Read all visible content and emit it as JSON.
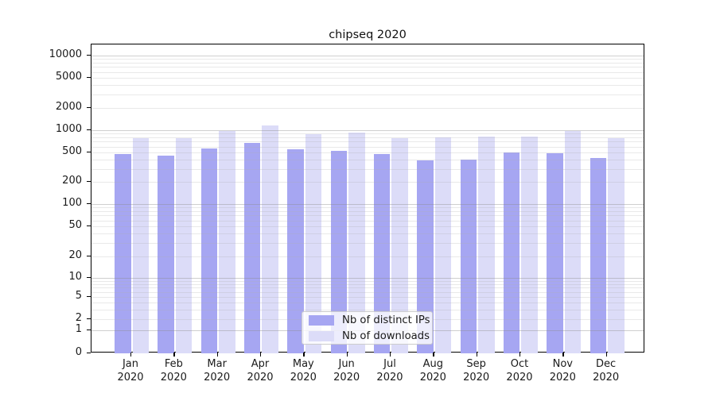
{
  "title": "chipseq 2020",
  "colors": {
    "bar_ips": "#a6a6f2",
    "bar_downloads": "#dcdcf8",
    "grid_major": "#d2d2d2",
    "grid_minor": "#e9e9e9",
    "spine": "#000000",
    "text": "#1a1a1a",
    "background": "#ffffff"
  },
  "legend": {
    "position": "lower center"
  },
  "chart_data": {
    "type": "bar",
    "title": "chipseq 2020",
    "categories": [
      "Jan 2020",
      "Feb 2020",
      "Mar 2020",
      "Apr 2020",
      "May 2020",
      "Jun 2020",
      "Jul 2020",
      "Aug 2020",
      "Sep 2020",
      "Oct 2020",
      "Nov 2020",
      "Dec 2020"
    ],
    "series": [
      {
        "name": "Nb of distinct IPs",
        "color": "#a6a6f2",
        "values": [
          470,
          450,
          560,
          670,
          550,
          530,
          475,
          395,
          405,
          500,
          490,
          425
        ]
      },
      {
        "name": "Nb of downloads",
        "color": "#dcdcf8",
        "values": [
          780,
          780,
          960,
          1150,
          880,
          925,
          780,
          785,
          820,
          820,
          965,
          770
        ]
      }
    ],
    "yscale": "symlog",
    "y_tick_values": [
      0,
      1,
      2,
      5,
      10,
      20,
      50,
      100,
      200,
      500,
      1000,
      2000,
      5000,
      10000
    ],
    "y_tick_labels": [
      "0",
      "1",
      "2",
      "5",
      "10",
      "20",
      "50",
      "100",
      "200",
      "500",
      "1000",
      "2000",
      "5000",
      "10000"
    ],
    "ylim": [
      0,
      14000
    ],
    "xlabel": "",
    "ylabel": "",
    "grid": "both",
    "legend_position": "lower center"
  }
}
